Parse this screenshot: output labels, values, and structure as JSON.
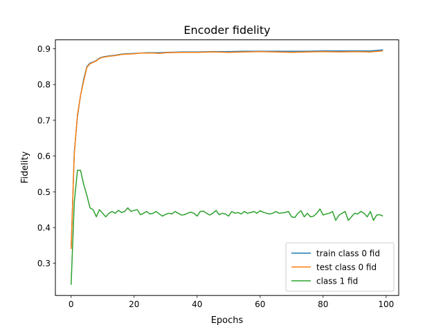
{
  "chart_data": {
    "type": "line",
    "title": "Encoder fidelity",
    "xlabel": "Epochs",
    "ylabel": "Fidelity",
    "xlim": [
      -5,
      104
    ],
    "ylim": [
      0.21,
      0.925
    ],
    "xticks": [
      0,
      20,
      40,
      60,
      80,
      100
    ],
    "yticks": [
      0.3,
      0.4,
      0.5,
      0.6,
      0.7,
      0.8,
      0.9
    ],
    "grid": false,
    "legend_position": "lower-right",
    "series": [
      {
        "name": "train class 0 fid",
        "color": "#1f77b4",
        "x": [
          0,
          1,
          2,
          3,
          4,
          5,
          6,
          7,
          8,
          9,
          10,
          12,
          14,
          16,
          18,
          20,
          22,
          24,
          26,
          28,
          30,
          35,
          40,
          45,
          50,
          55,
          60,
          65,
          70,
          75,
          80,
          85,
          90,
          95,
          99
        ],
        "values": [
          0.34,
          0.61,
          0.71,
          0.77,
          0.815,
          0.85,
          0.86,
          0.863,
          0.867,
          0.874,
          0.877,
          0.88,
          0.882,
          0.885,
          0.886,
          0.887,
          0.888,
          0.889,
          0.889,
          0.889,
          0.89,
          0.891,
          0.891,
          0.892,
          0.892,
          0.893,
          0.893,
          0.893,
          0.893,
          0.893,
          0.894,
          0.894,
          0.894,
          0.894,
          0.897
        ]
      },
      {
        "name": "test class 0 fid",
        "color": "#ff7f0e",
        "x": [
          0,
          1,
          2,
          3,
          4,
          5,
          6,
          7,
          8,
          9,
          10,
          12,
          14,
          16,
          18,
          20,
          22,
          24,
          26,
          28,
          30,
          35,
          40,
          45,
          50,
          55,
          60,
          65,
          70,
          75,
          80,
          85,
          90,
          95,
          99
        ],
        "values": [
          0.34,
          0.605,
          0.715,
          0.77,
          0.81,
          0.848,
          0.858,
          0.862,
          0.866,
          0.873,
          0.876,
          0.879,
          0.881,
          0.884,
          0.885,
          0.886,
          0.888,
          0.888,
          0.888,
          0.887,
          0.889,
          0.89,
          0.89,
          0.891,
          0.89,
          0.891,
          0.892,
          0.891,
          0.89,
          0.891,
          0.892,
          0.891,
          0.892,
          0.891,
          0.894
        ]
      },
      {
        "name": "class 1 fid",
        "color": "#2ca02c",
        "x": [
          0,
          1,
          2,
          3,
          4,
          5,
          6,
          7,
          8,
          9,
          10,
          11,
          12,
          13,
          14,
          15,
          16,
          17,
          18,
          19,
          20,
          21,
          22,
          23,
          24,
          25,
          26,
          27,
          28,
          29,
          30,
          31,
          32,
          33,
          34,
          35,
          36,
          37,
          38,
          39,
          40,
          41,
          42,
          43,
          44,
          45,
          46,
          47,
          48,
          49,
          50,
          51,
          52,
          53,
          54,
          55,
          56,
          57,
          58,
          59,
          60,
          61,
          62,
          63,
          64,
          65,
          66,
          67,
          68,
          69,
          70,
          71,
          72,
          73,
          74,
          75,
          76,
          77,
          78,
          79,
          80,
          81,
          82,
          83,
          84,
          85,
          86,
          87,
          88,
          89,
          90,
          91,
          92,
          93,
          94,
          95,
          96,
          97,
          98,
          99
        ],
        "values": [
          0.24,
          0.47,
          0.56,
          0.56,
          0.52,
          0.49,
          0.455,
          0.45,
          0.43,
          0.45,
          0.44,
          0.43,
          0.44,
          0.445,
          0.44,
          0.448,
          0.442,
          0.445,
          0.455,
          0.445,
          0.448,
          0.45,
          0.436,
          0.44,
          0.445,
          0.438,
          0.44,
          0.445,
          0.438,
          0.432,
          0.437,
          0.44,
          0.438,
          0.445,
          0.44,
          0.435,
          0.436,
          0.44,
          0.443,
          0.44,
          0.432,
          0.445,
          0.446,
          0.44,
          0.435,
          0.44,
          0.448,
          0.436,
          0.44,
          0.438,
          0.432,
          0.445,
          0.44,
          0.442,
          0.438,
          0.445,
          0.44,
          0.442,
          0.445,
          0.44,
          0.447,
          0.443,
          0.44,
          0.438,
          0.44,
          0.445,
          0.44,
          0.441,
          0.442,
          0.445,
          0.43,
          0.428,
          0.44,
          0.447,
          0.43,
          0.44,
          0.43,
          0.432,
          0.44,
          0.452,
          0.435,
          0.438,
          0.44,
          0.445,
          0.42,
          0.434,
          0.44,
          0.445,
          0.42,
          0.43,
          0.44,
          0.438,
          0.445,
          0.44,
          0.43,
          0.445,
          0.42,
          0.435,
          0.436,
          0.432
        ]
      }
    ]
  }
}
